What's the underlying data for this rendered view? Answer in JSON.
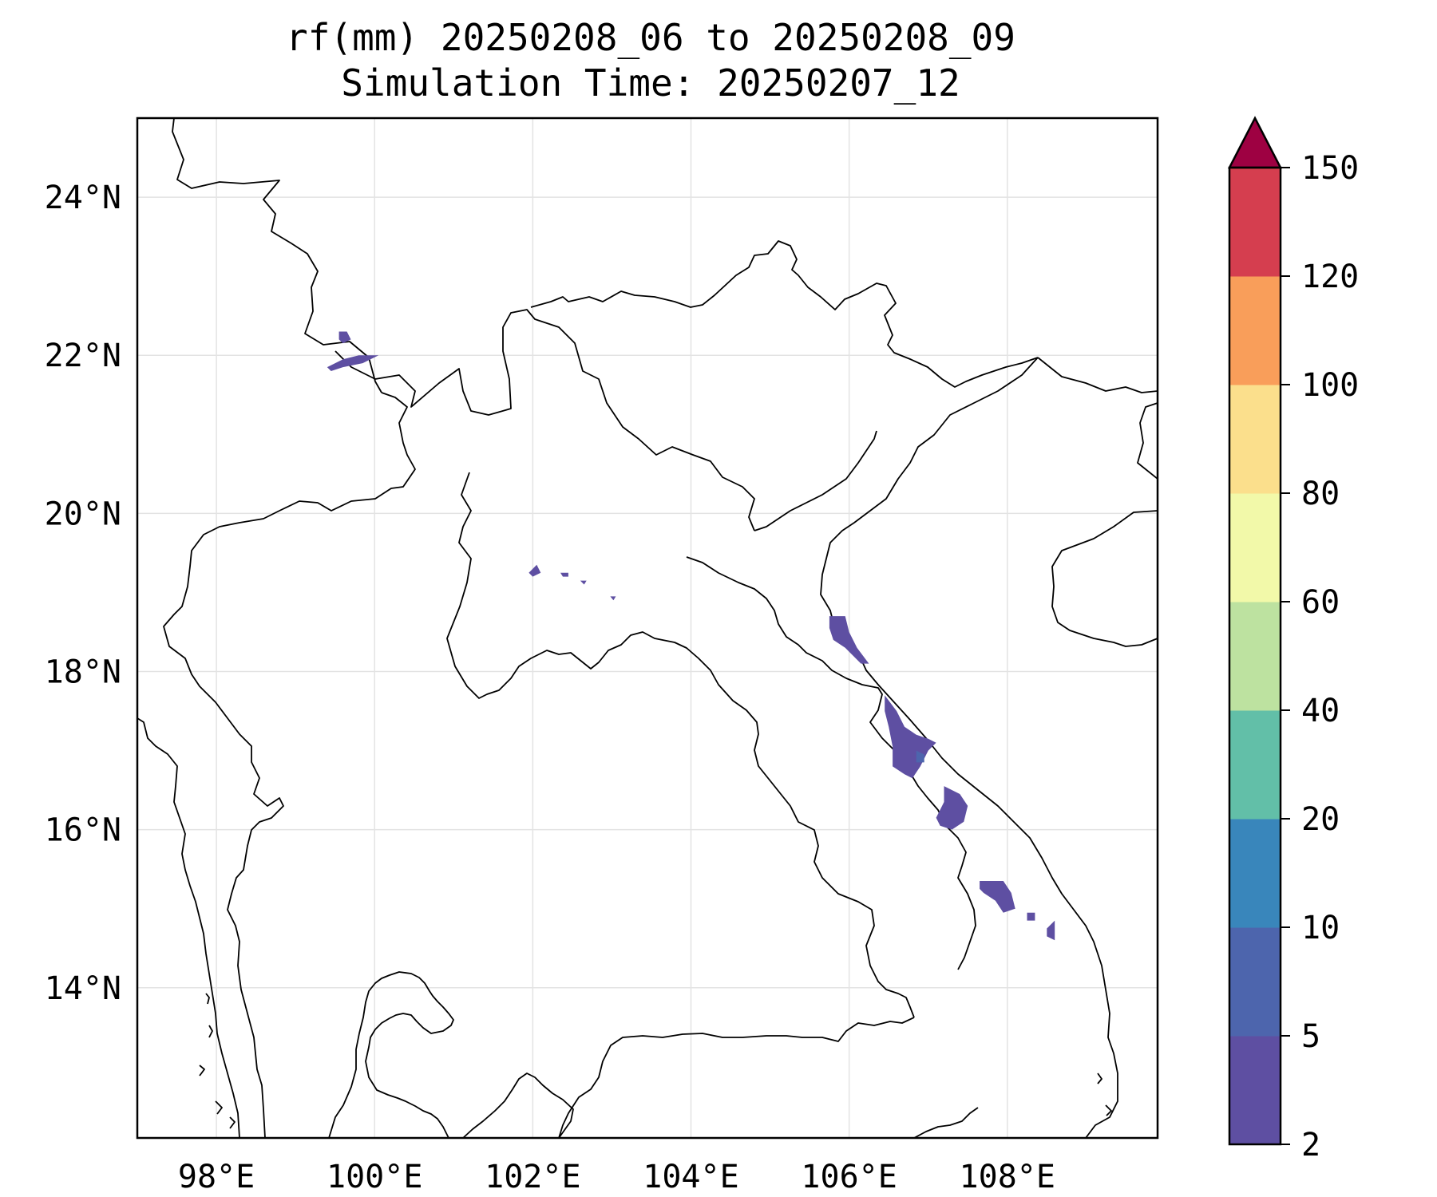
{
  "title": {
    "line1": "rf(mm) 20250208_06 to 20250208_09",
    "line2": "Simulation Time: 20250207_12"
  },
  "map": {
    "lon_range": [
      97.0,
      109.9
    ],
    "lat_range": [
      12.1,
      25.0
    ],
    "lon_ticks": [
      {
        "value": 98,
        "label": "98°E"
      },
      {
        "value": 100,
        "label": "100°E"
      },
      {
        "value": 102,
        "label": "102°E"
      },
      {
        "value": 104,
        "label": "104°E"
      },
      {
        "value": 106,
        "label": "106°E"
      },
      {
        "value": 108,
        "label": "108°E"
      }
    ],
    "lat_ticks": [
      {
        "value": 24,
        "label": "24°N"
      },
      {
        "value": 22,
        "label": "22°N"
      },
      {
        "value": 20,
        "label": "20°N"
      },
      {
        "value": 18,
        "label": "18°N"
      },
      {
        "value": 16,
        "label": "16°N"
      },
      {
        "value": 14,
        "label": "14°N"
      }
    ],
    "gridlines": true
  },
  "colorbar": {
    "levels": [
      "2",
      "5",
      "10",
      "20",
      "40",
      "60",
      "80",
      "100",
      "120",
      "150"
    ],
    "colors": [
      "#5e4fa2",
      "#4d65ad",
      "#3986bb",
      "#62bfa8",
      "#bde2a0",
      "#f2f9a9",
      "#fbdf8c",
      "#f99e5a",
      "#d53e4f"
    ],
    "extend_color": "#9e0142",
    "extend": "max"
  },
  "chart_data": {
    "type": "heatmap",
    "title": "rf(mm) 20250208_06 to 20250208_09",
    "subtitle": "Simulation Time: 20250207_12",
    "xlim": [
      97.0,
      109.9
    ],
    "ylim": [
      12.1,
      25.0
    ],
    "color_levels": [
      2,
      5,
      10,
      20,
      40,
      60,
      80,
      100,
      120,
      150
    ],
    "rain_patches": [
      {
        "level": "2-5",
        "points": [
          [
            99.55,
            22.3
          ],
          [
            99.65,
            22.3
          ],
          [
            99.7,
            22.2
          ],
          [
            99.6,
            22.15
          ],
          [
            99.55,
            22.2
          ]
        ]
      },
      {
        "level": "2-5",
        "points": [
          [
            99.4,
            21.85
          ],
          [
            99.6,
            21.95
          ],
          [
            99.8,
            22.0
          ],
          [
            100.05,
            22.0
          ],
          [
            99.85,
            21.9
          ],
          [
            99.6,
            21.85
          ],
          [
            99.45,
            21.8
          ]
        ]
      },
      {
        "level": "2-5",
        "points": [
          [
            101.95,
            19.25
          ],
          [
            102.05,
            19.35
          ],
          [
            102.1,
            19.25
          ],
          [
            102.0,
            19.2
          ]
        ]
      },
      {
        "level": "2-5",
        "points": [
          [
            102.35,
            19.25
          ],
          [
            102.45,
            19.25
          ],
          [
            102.45,
            19.2
          ],
          [
            102.38,
            19.2
          ]
        ]
      },
      {
        "level": "2-5",
        "points": [
          [
            102.6,
            19.15
          ],
          [
            102.68,
            19.15
          ],
          [
            102.65,
            19.1
          ]
        ]
      },
      {
        "level": "2-5",
        "points": [
          [
            102.98,
            18.95
          ],
          [
            103.05,
            18.95
          ],
          [
            103.02,
            18.9
          ]
        ]
      },
      {
        "level": "2-5",
        "points": [
          [
            105.75,
            18.7
          ],
          [
            105.95,
            18.7
          ],
          [
            106.0,
            18.5
          ],
          [
            106.1,
            18.3
          ],
          [
            106.25,
            18.1
          ],
          [
            106.15,
            18.1
          ],
          [
            105.95,
            18.3
          ],
          [
            105.8,
            18.4
          ],
          [
            105.75,
            18.55
          ]
        ]
      },
      {
        "level": "2-5",
        "points": [
          [
            106.45,
            17.7
          ],
          [
            106.6,
            17.5
          ],
          [
            106.7,
            17.3
          ],
          [
            106.85,
            17.2
          ],
          [
            107.0,
            17.15
          ],
          [
            107.1,
            17.1
          ],
          [
            107.0,
            17.0
          ],
          [
            106.9,
            16.8
          ],
          [
            106.8,
            16.65
          ],
          [
            106.7,
            16.7
          ],
          [
            106.55,
            16.8
          ],
          [
            106.55,
            17.05
          ],
          [
            106.5,
            17.3
          ],
          [
            106.45,
            17.5
          ]
        ]
      },
      {
        "level": "5-10",
        "points": [
          [
            106.85,
            17.0
          ],
          [
            106.95,
            16.95
          ],
          [
            106.95,
            16.85
          ],
          [
            106.85,
            16.85
          ]
        ]
      },
      {
        "level": "2-5",
        "points": [
          [
            107.2,
            16.55
          ],
          [
            107.4,
            16.45
          ],
          [
            107.5,
            16.3
          ],
          [
            107.45,
            16.1
          ],
          [
            107.3,
            16.0
          ],
          [
            107.15,
            16.05
          ],
          [
            107.1,
            16.15
          ],
          [
            107.2,
            16.35
          ]
        ]
      },
      {
        "level": "2-5",
        "points": [
          [
            107.65,
            15.35
          ],
          [
            107.95,
            15.35
          ],
          [
            108.05,
            15.2
          ],
          [
            108.1,
            15.0
          ],
          [
            107.95,
            14.95
          ],
          [
            107.85,
            15.1
          ],
          [
            107.7,
            15.2
          ],
          [
            107.65,
            15.25
          ]
        ]
      },
      {
        "level": "2-5",
        "points": [
          [
            108.25,
            14.95
          ],
          [
            108.35,
            14.95
          ],
          [
            108.35,
            14.85
          ],
          [
            108.25,
            14.85
          ]
        ]
      },
      {
        "level": "2-5",
        "points": [
          [
            108.5,
            14.75
          ],
          [
            108.6,
            14.85
          ],
          [
            108.6,
            14.6
          ],
          [
            108.5,
            14.65
          ]
        ]
      }
    ]
  }
}
